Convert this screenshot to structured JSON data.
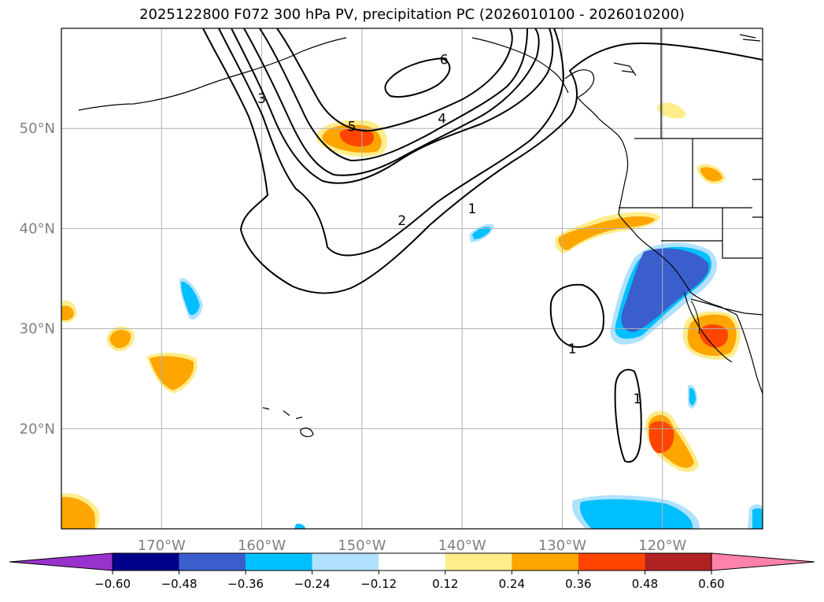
{
  "title": "2025122800 F072 300 hPa PV, precipitation PC (2026010100 - 2026010200)",
  "chart_data": {
    "type": "heatmap",
    "title": "2025122800 F072 300 hPa PV, precipitation PC (2026010100 - 2026010200)",
    "x_axis": {
      "range_lon": [
        -180,
        -110
      ],
      "ticks": [
        -170,
        -160,
        -150,
        -140,
        -130,
        -120
      ],
      "tick_labels": [
        "170°W",
        "160°W",
        "150°W",
        "140°W",
        "130°W",
        "120°W"
      ]
    },
    "y_axis": {
      "range_lat": [
        10,
        60
      ],
      "ticks": [
        20,
        30,
        40,
        50
      ],
      "tick_labels": [
        "20°N",
        "30°N",
        "40°N",
        "50°N"
      ]
    },
    "grid": true,
    "colorbar": {
      "placement": "bottom",
      "extend": "both",
      "boundaries": [
        -0.6,
        -0.48,
        -0.36,
        -0.24,
        -0.12,
        0.12,
        0.24,
        0.36,
        0.48,
        0.6
      ],
      "tick_labels": [
        "−0.60",
        "−0.48",
        "−0.36",
        "−0.24",
        "−0.12",
        "0.12",
        "0.24",
        "0.36",
        "0.48",
        "0.60"
      ],
      "colors": [
        "#9932cc",
        "#00008b",
        "#3a5fcd",
        "#00bfff",
        "#b0e2ff",
        "#ffffff",
        "#ffec8b",
        "#ffa500",
        "#ff4500",
        "#b22222",
        "#ff82ab"
      ]
    },
    "pv_contour_labels": [
      {
        "label": "1",
        "lon": -139,
        "lat": 42
      },
      {
        "label": "1",
        "lon": -129,
        "lat": 28
      },
      {
        "label": "1",
        "lon": -122.5,
        "lat": 23
      },
      {
        "label": "2",
        "lon": -146,
        "lat": 40.8
      },
      {
        "label": "3",
        "lon": -160,
        "lat": 53
      },
      {
        "label": "4",
        "lon": -142,
        "lat": 51
      },
      {
        "label": "5",
        "lon": -151,
        "lat": 50.2
      },
      {
        "label": "6",
        "lon": -141.8,
        "lat": 56.9
      }
    ],
    "precip_regions": [
      {
        "category": "positive",
        "max_level": 0.36,
        "lon": -150.5,
        "lat": 49
      },
      {
        "category": "positive",
        "max_level": 0.36,
        "lon": -115,
        "lat": 29.5
      },
      {
        "category": "positive",
        "max_level": 0.36,
        "lon": -120.5,
        "lat": 19
      },
      {
        "category": "positive",
        "max_level": 0.24,
        "lon": -126,
        "lat": 40
      },
      {
        "category": "positive",
        "max_level": 0.24,
        "lon": -168,
        "lat": 26
      },
      {
        "category": "positive",
        "max_level": 0.24,
        "lon": -174,
        "lat": 29
      },
      {
        "category": "positive",
        "max_level": 0.24,
        "lon": -117,
        "lat": 45.5
      },
      {
        "category": "positive",
        "max_level": 0.24,
        "lon": -178,
        "lat": 12
      },
      {
        "category": "negative",
        "max_level": -0.36,
        "lon": -121,
        "lat": 35
      },
      {
        "category": "negative",
        "max_level": -0.24,
        "lon": -166.5,
        "lat": 32
      },
      {
        "category": "negative",
        "max_level": -0.24,
        "lon": -140,
        "lat": 39.5
      },
      {
        "category": "negative",
        "max_level": -0.24,
        "lon": -118,
        "lat": 21.5
      },
      {
        "category": "negative",
        "max_level": -0.24,
        "lon": -124,
        "lat": 12
      }
    ]
  }
}
